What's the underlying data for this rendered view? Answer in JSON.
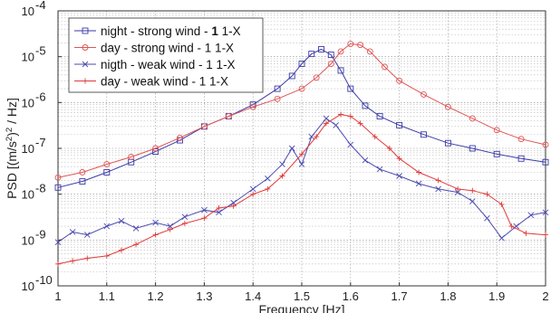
{
  "chart_data": {
    "type": "line",
    "title": "",
    "xlabel": "Frequency [Hz]",
    "ylabel_parts": [
      "PSD [(m/s",
      "2",
      ")",
      "2",
      " / Hz]"
    ],
    "ylabel": "PSD [(m/s2)2 / Hz]",
    "x_scale": "linear",
    "y_scale": "log",
    "xlim": [
      1,
      2
    ],
    "ylim": [
      1e-10,
      0.0001
    ],
    "grid": true,
    "legend_position": "top-left",
    "x_ticks": [
      1,
      1.1,
      1.2,
      1.3,
      1.4,
      1.5,
      1.6,
      1.7,
      1.8,
      1.9,
      2
    ],
    "x_tick_labels": [
      "1",
      "1.1",
      "1.2",
      "1.3",
      "1.4",
      "1.5",
      "1.6",
      "1.7",
      "1.8",
      "1.9",
      "2"
    ],
    "y_ticks": [
      1e-10,
      1e-09,
      1e-08,
      1e-07,
      1e-06,
      1e-05,
      0.0001
    ],
    "y_tick_exponents": [
      "-10",
      "-9",
      "-8",
      "-7",
      "-6",
      "-5",
      "-4"
    ],
    "series": [
      {
        "name": "night - strong wind - 1 1-X",
        "legend_prefix": "night - strong wind - ",
        "legend_bold": "1",
        "legend_suffix": " 1-X",
        "color": "#3a3aa8",
        "marker": "square",
        "x": [
          1,
          1.05,
          1.1,
          1.15,
          1.2,
          1.25,
          1.3,
          1.35,
          1.4,
          1.45,
          1.48,
          1.5,
          1.52,
          1.54,
          1.56,
          1.58,
          1.6,
          1.63,
          1.66,
          1.7,
          1.75,
          1.8,
          1.85,
          1.9,
          1.95,
          2.0
        ],
        "y": [
          1.4e-08,
          1.9e-08,
          3e-08,
          5e-08,
          8.5e-08,
          1.5e-07,
          3e-07,
          5e-07,
          9e-07,
          2e-06,
          3.8e-06,
          7e-06,
          1.15e-05,
          1.45e-05,
          1.1e-05,
          5e-06,
          2e-06,
          8.5e-07,
          5e-07,
          3.2e-07,
          2e-07,
          1.3e-07,
          1e-07,
          7.5e-08,
          6e-08,
          5e-08
        ]
      },
      {
        "name": "day - strong wind - 1 1-X",
        "legend_prefix": "day - strong wind - 1 1-X",
        "legend_bold": "",
        "legend_suffix": "",
        "color": "#e05555",
        "marker": "circle",
        "x": [
          1,
          1.05,
          1.1,
          1.15,
          1.2,
          1.25,
          1.3,
          1.35,
          1.4,
          1.45,
          1.5,
          1.53,
          1.56,
          1.58,
          1.6,
          1.62,
          1.64,
          1.67,
          1.7,
          1.75,
          1.8,
          1.85,
          1.9,
          1.95,
          2.0
        ],
        "y": [
          2.3e-08,
          3e-08,
          4.5e-08,
          6.5e-08,
          1e-07,
          1.7e-07,
          3e-07,
          5e-07,
          8e-07,
          1.2e-06,
          2e-06,
          3.5e-06,
          7e-06,
          1.3e-05,
          1.9e-05,
          1.8e-05,
          1.3e-05,
          6e-06,
          3e-06,
          1.5e-06,
          8e-07,
          4.5e-07,
          2.5e-07,
          1.6e-07,
          1.2e-07
        ]
      },
      {
        "name": "nigth - weak wind - 1 1-X",
        "legend_prefix": "nigth - weak wind - 1 1-X",
        "legend_bold": "",
        "legend_suffix": "",
        "color": "#4a4ab0",
        "marker": "x",
        "x": [
          1,
          1.03,
          1.06,
          1.1,
          1.13,
          1.16,
          1.2,
          1.23,
          1.26,
          1.3,
          1.33,
          1.36,
          1.4,
          1.43,
          1.46,
          1.48,
          1.5,
          1.52,
          1.55,
          1.57,
          1.6,
          1.63,
          1.66,
          1.7,
          1.74,
          1.78,
          1.82,
          1.85,
          1.88,
          1.91,
          1.94,
          1.97,
          2.0
        ],
        "y": [
          9e-10,
          1.5e-09,
          1.3e-09,
          2e-09,
          2.6e-09,
          1.8e-09,
          2.4e-09,
          2e-09,
          3.2e-09,
          4.5e-09,
          4e-09,
          6.5e-09,
          1.3e-08,
          2.2e-08,
          4.5e-08,
          1e-07,
          4.5e-08,
          1.8e-07,
          4.5e-07,
          3.2e-07,
          1.2e-07,
          5.5e-08,
          3.5e-08,
          2.5e-08,
          1.7e-08,
          1.3e-08,
          1.1e-08,
          7e-09,
          3e-09,
          1.1e-09,
          2e-09,
          3.5e-09,
          4e-09
        ]
      },
      {
        "name": "day - weak wind - 1 1-X",
        "legend_prefix": "day - weak wind - 1 1-X",
        "legend_bold": "",
        "legend_suffix": "",
        "color": "#e03a3a",
        "marker": "plus",
        "x": [
          1,
          1.03,
          1.06,
          1.1,
          1.13,
          1.16,
          1.2,
          1.23,
          1.26,
          1.3,
          1.33,
          1.36,
          1.4,
          1.43,
          1.46,
          1.5,
          1.53,
          1.55,
          1.58,
          1.6,
          1.62,
          1.65,
          1.68,
          1.7,
          1.74,
          1.78,
          1.82,
          1.85,
          1.88,
          1.91,
          1.93,
          1.96,
          2.0
        ],
        "y": [
          3e-10,
          3.5e-10,
          4e-10,
          4.5e-10,
          6e-10,
          8e-10,
          1.3e-09,
          1.7e-09,
          2.3e-09,
          3e-09,
          5e-09,
          5.5e-09,
          1e-08,
          1.3e-08,
          2.5e-08,
          7.5e-08,
          1.8e-07,
          3.5e-07,
          5.5e-07,
          5e-07,
          3.5e-07,
          1.8e-07,
          1e-07,
          6e-08,
          3e-08,
          2e-08,
          1.3e-08,
          1.2e-08,
          1e-08,
          6e-09,
          2e-09,
          1.4e-09,
          1.3e-09
        ]
      }
    ]
  }
}
